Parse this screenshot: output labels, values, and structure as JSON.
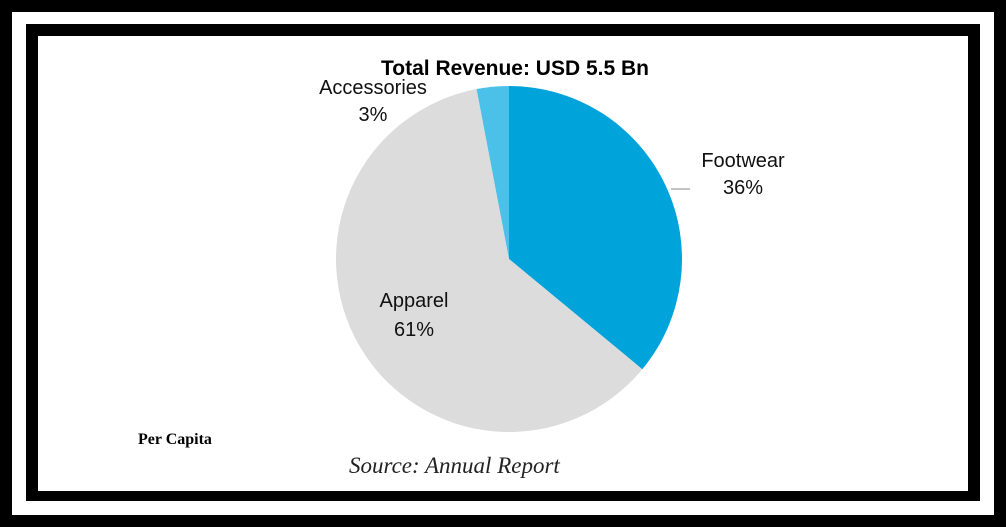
{
  "chart_data": {
    "type": "pie",
    "title": "Total Revenue: USD 5.5 Bn",
    "slices": [
      {
        "label": "Footwear",
        "value": 36,
        "value_label": "36%",
        "color": "#00A3DA"
      },
      {
        "label": "Apparel",
        "value": 61,
        "value_label": "61%",
        "color": "#DCDCDC"
      },
      {
        "label": "Accessories",
        "value": 3,
        "value_label": "3%",
        "color": "#4BC0E8"
      }
    ]
  },
  "footer": {
    "note": "Per Capita",
    "source": "Source: Annual Report"
  }
}
